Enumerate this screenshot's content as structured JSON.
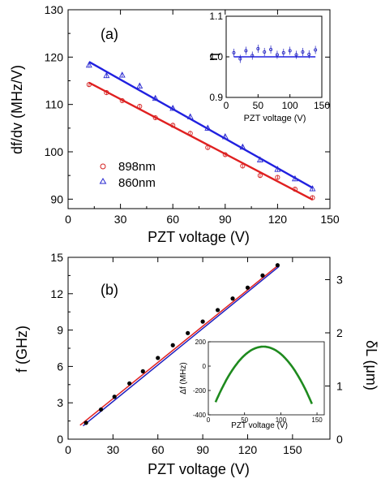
{
  "chart_data": [
    {
      "type": "scatter",
      "panel_label": "(a)",
      "xlabel": "PZT voltage (V)",
      "ylabel": "df/dv (MHz/V)",
      "xlim": [
        0,
        150
      ],
      "ylim": [
        88,
        130
      ],
      "xticks": [
        0,
        30,
        60,
        90,
        120,
        150
      ],
      "yticks": [
        90,
        100,
        110,
        120,
        130
      ],
      "legend_position": "bottom-left",
      "series": [
        {
          "name": "898nm",
          "marker": "circle",
          "color": "#d42020",
          "x": [
            12,
            22,
            31,
            41,
            50,
            60,
            70,
            80,
            90,
            100,
            110,
            120,
            130,
            140
          ],
          "y": [
            114.2,
            112.5,
            110.8,
            109.6,
            107.2,
            105.6,
            103.9,
            100.9,
            99.4,
            97.0,
            95.0,
            94.6,
            92.1,
            90.3
          ],
          "fit": {
            "x": [
              12,
              140
            ],
            "y": [
              114.6,
              89.9
            ],
            "color": "#e02020"
          }
        },
        {
          "name": "860nm",
          "marker": "triangle",
          "color": "#2a2ad0",
          "x": [
            12,
            22,
            31,
            41,
            50,
            60,
            70,
            80,
            90,
            100,
            110,
            120,
            130,
            140
          ],
          "y": [
            118.3,
            116.1,
            116.2,
            113.9,
            111.3,
            109.2,
            107.4,
            105.0,
            103.2,
            101.0,
            98.3,
            96.3,
            94.3,
            92.2
          ],
          "fit": {
            "x": [
              12,
              140
            ],
            "y": [
              119.0,
              92.4
            ],
            "color": "#2020e0"
          }
        }
      ],
      "inset": {
        "type": "scatter",
        "xlabel": "PZT voltage (V)",
        "ylabel": "η",
        "xlim": [
          0,
          150
        ],
        "ylim": [
          0.9,
          1.1
        ],
        "xticks": [
          0,
          50,
          100,
          150
        ],
        "yticks": [
          0.9,
          1.0,
          1.1
        ],
        "baseline": 1.0,
        "x": [
          12,
          22,
          31,
          41,
          50,
          60,
          70,
          80,
          90,
          100,
          110,
          120,
          130,
          140
        ],
        "y": [
          1.01,
          0.995,
          1.015,
          1.003,
          1.02,
          1.012,
          1.018,
          1.005,
          1.01,
          1.015,
          1.005,
          1.012,
          1.006,
          1.017
        ]
      }
    },
    {
      "type": "line",
      "panel_label": "(b)",
      "xlabel": "PZT voltage (V)",
      "ylabel": "f (GHz)",
      "y2label": "δL (μm)",
      "xlim": [
        0,
        175
      ],
      "ylim": [
        0,
        15
      ],
      "y2lim": [
        0,
        3.42
      ],
      "xticks": [
        0,
        30,
        60,
        90,
        120,
        150
      ],
      "yticks": [
        0,
        3,
        6,
        9,
        12,
        15
      ],
      "y2ticks": [
        0,
        1,
        2,
        3
      ],
      "series": [
        {
          "marker": "filled-circle",
          "x": [
            12,
            22,
            31,
            41,
            50,
            60,
            70,
            80,
            90,
            100,
            110,
            120,
            130,
            140
          ],
          "y": [
            1.35,
            2.45,
            3.5,
            4.6,
            5.6,
            6.7,
            7.75,
            8.75,
            9.7,
            10.65,
            11.6,
            12.5,
            13.5,
            14.35
          ]
        }
      ],
      "fits": [
        {
          "color": "#e02020",
          "x": [
            8,
            141
          ],
          "y": [
            1.15,
            14.4
          ]
        },
        {
          "color": "#2020c0",
          "x": [
            10,
            141
          ],
          "y": [
            1.1,
            14.25
          ]
        }
      ],
      "inset": {
        "type": "line",
        "xlabel": "PZT voltage (V)",
        "ylabel": "Δf (MHz)",
        "xlim": [
          0,
          160
        ],
        "ylim": [
          -400,
          200
        ],
        "xticks": [
          0,
          50,
          100,
          150
        ],
        "yticks": [
          -400,
          -200,
          0,
          200
        ],
        "color": "#1e8a1e",
        "curve": {
          "vertex_x": 76,
          "vertex_y": 160,
          "x_start": 10,
          "x_end": 143,
          "y_end": -310
        }
      }
    }
  ]
}
